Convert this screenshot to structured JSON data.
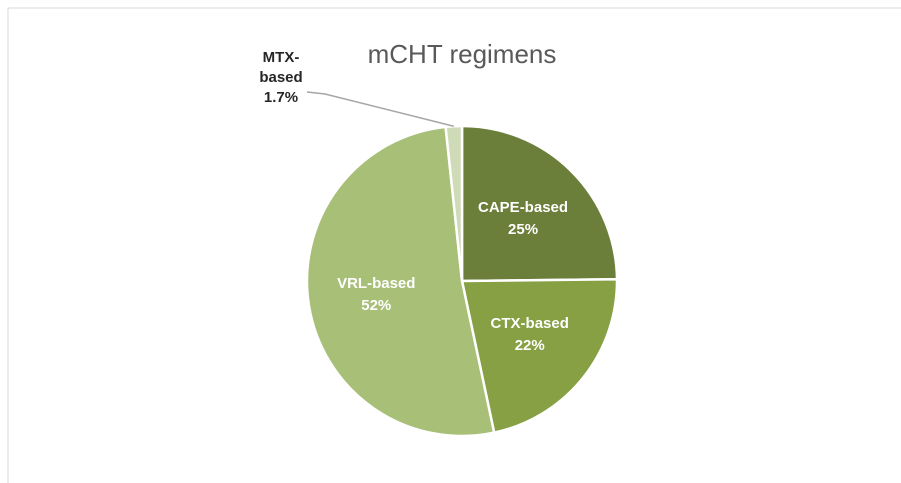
{
  "chart_data": {
    "type": "pie",
    "title": "mCHT regimens",
    "categories": [
      "CAPE-based",
      "CTX-based",
      "VRL-based",
      "MTX-based"
    ],
    "values": [
      25,
      22,
      52,
      1.7
    ],
    "value_labels": [
      "25%",
      "22%",
      "52%",
      "1.7%"
    ],
    "colors": [
      "#6b7e3a",
      "#86a043",
      "#a8bf77",
      "#cfdab6"
    ]
  }
}
